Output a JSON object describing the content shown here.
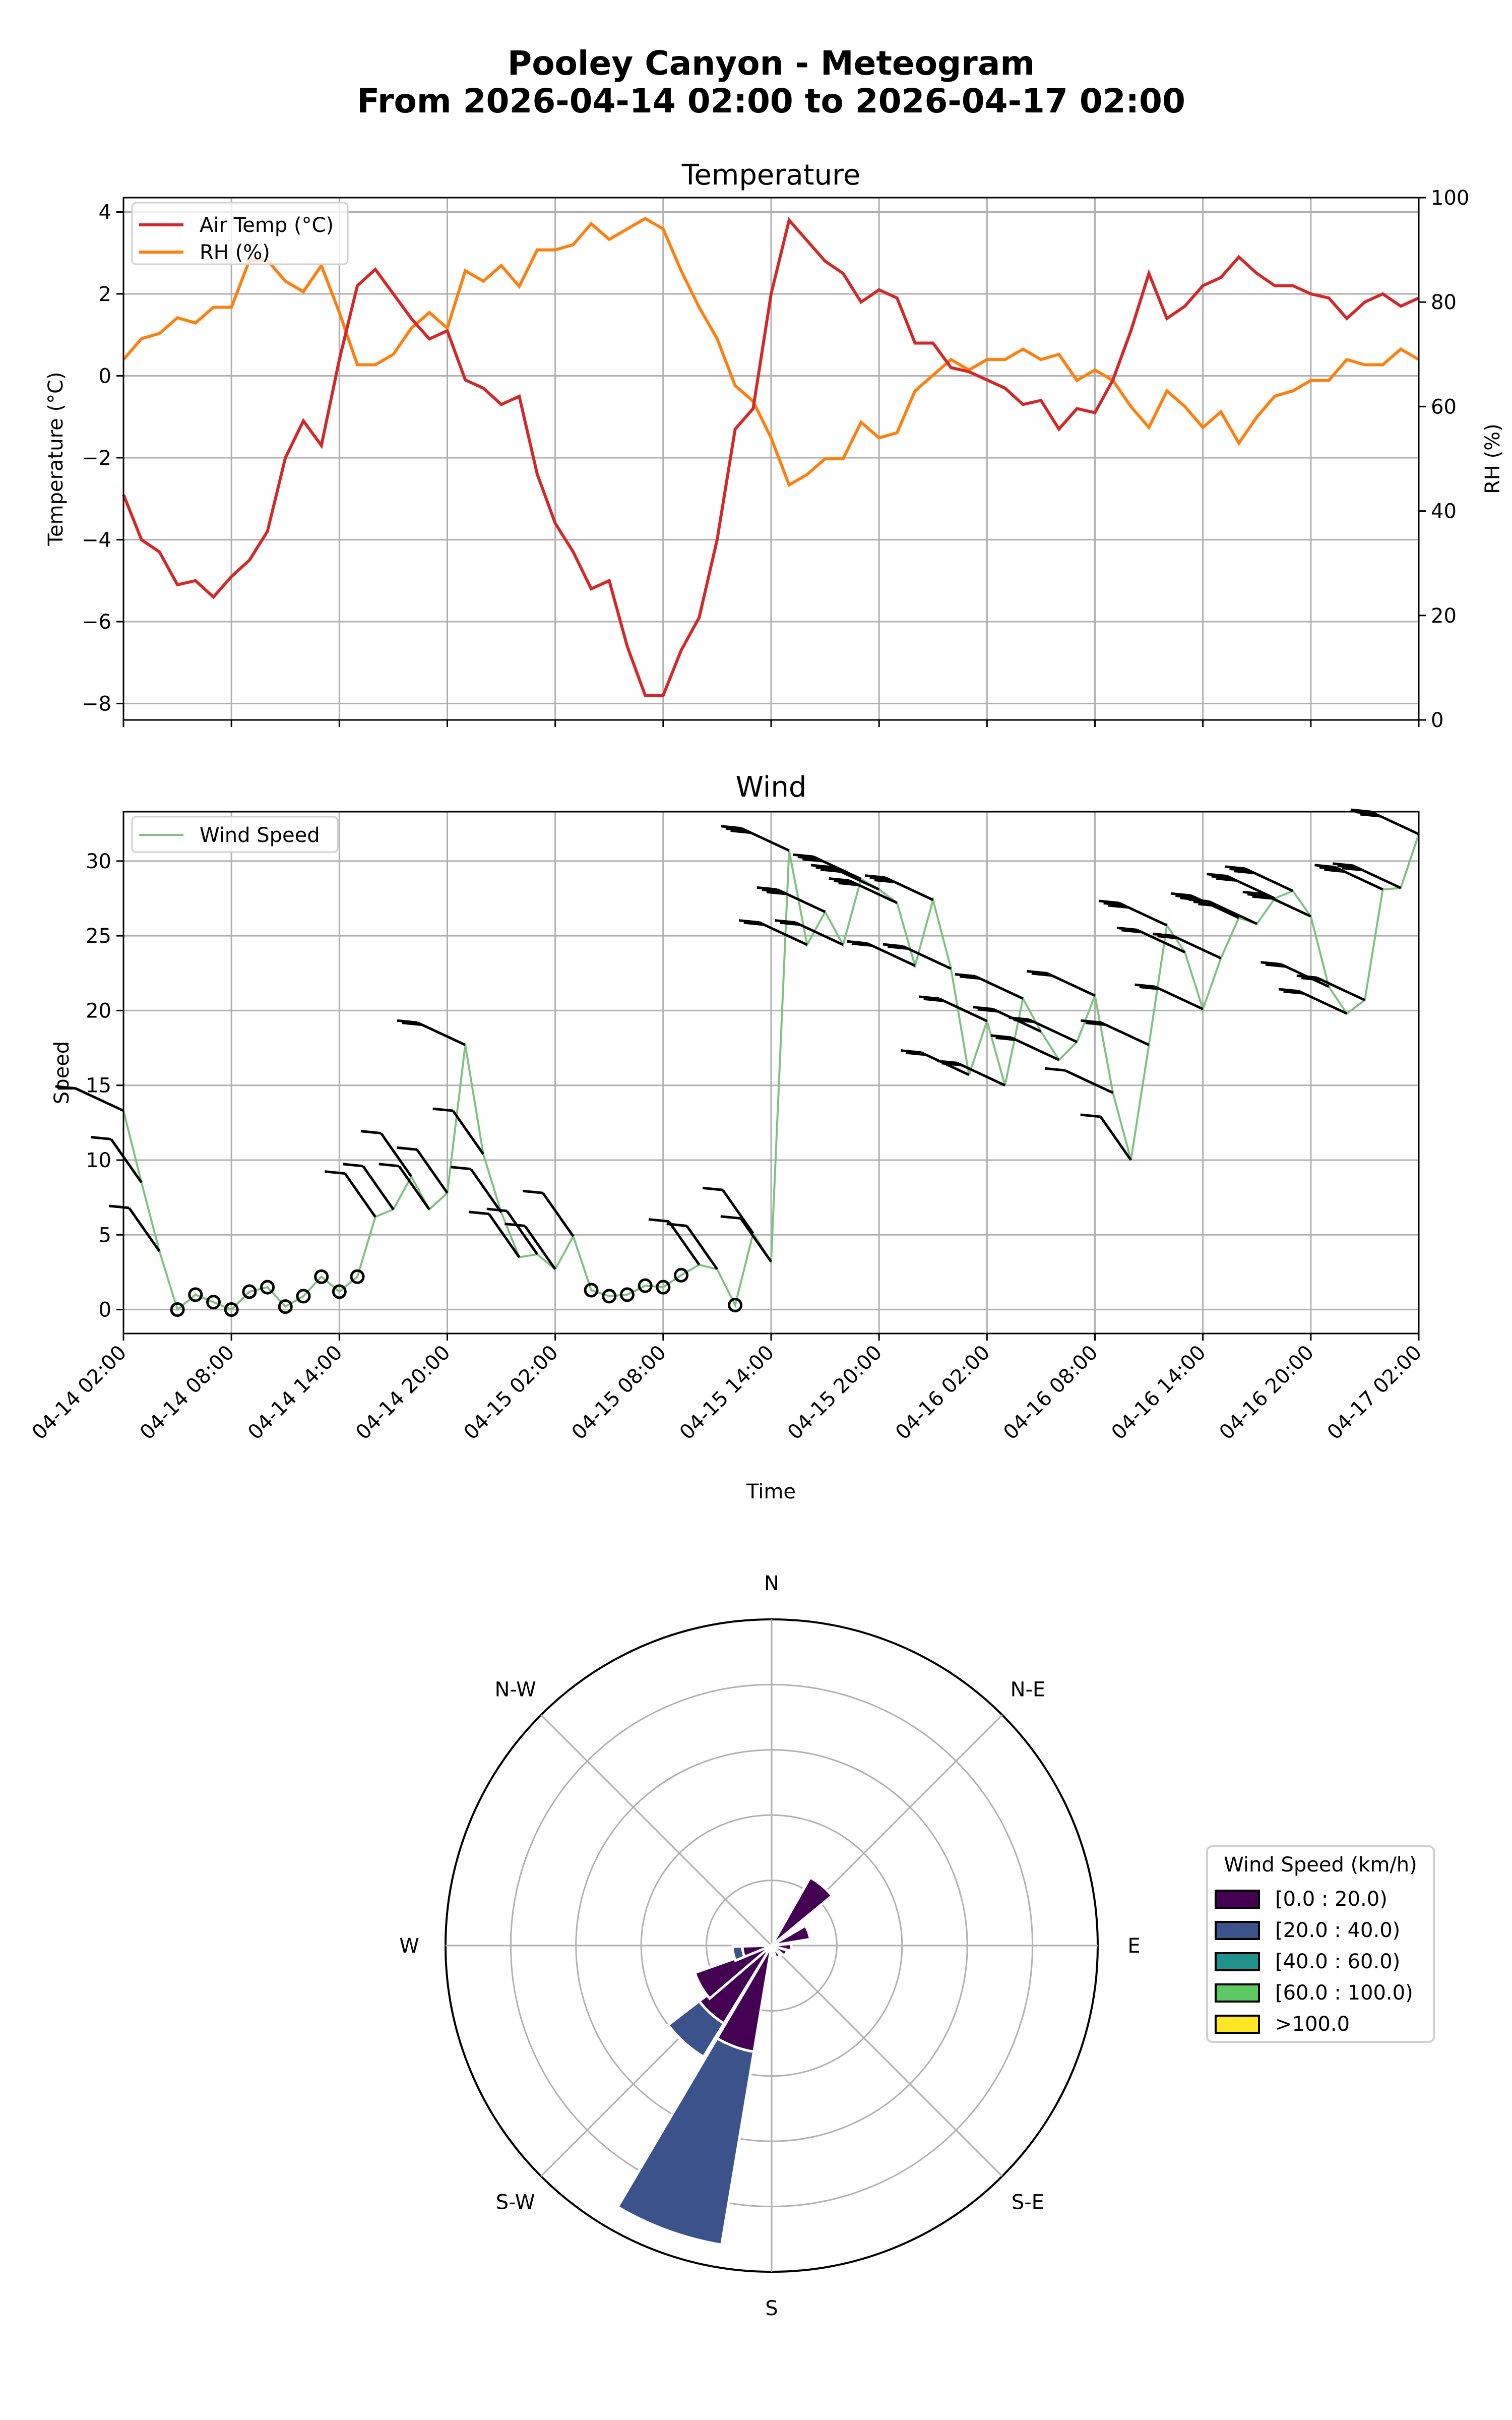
{
  "figure": {
    "title_line1": "Pooley Canyon - Meteogram",
    "title_line2": "From 2026-04-14 02:00 to 2026-04-17 02:00"
  },
  "colors": {
    "air_temp": "#d62728",
    "rh": "#ff7f0e",
    "wind_speed": "#7fc17f",
    "grid": "#b0b0b0",
    "barb": "#000000",
    "bin_0_20": "#440154",
    "bin_20_40": "#3b528b",
    "bin_40_60": "#21918c",
    "bin_60_100": "#5ec962",
    "bin_100_plus": "#fde725"
  },
  "x_ticks": [
    "04-14 02:00",
    "04-14 08:00",
    "04-14 14:00",
    "04-14 20:00",
    "04-15 02:00",
    "04-15 08:00",
    "04-15 14:00",
    "04-15 20:00",
    "04-16 02:00",
    "04-16 08:00",
    "04-16 14:00",
    "04-16 20:00",
    "04-17 02:00"
  ],
  "chart_data": [
    {
      "type": "line",
      "title": "Temperature",
      "xlabel": "",
      "ylabel": "Temperature (°C)",
      "ylabel_right": "RH (%)",
      "ylim": [
        -8.4,
        4.35
      ],
      "ylim_right": [
        0,
        100
      ],
      "yticks": [
        -8,
        -6,
        -4,
        -2,
        0,
        2,
        4
      ],
      "yticks_right": [
        0,
        20,
        40,
        60,
        80,
        100
      ],
      "grid": true,
      "legend_position": "upper left",
      "x_unit": "hours since 2026-04-14 02:00 (hourly, 0–72)",
      "series": [
        {
          "name": "Air Temp (°C)",
          "axis": "left",
          "color": "#d62728",
          "values": [
            -2.9,
            -4.0,
            -4.3,
            -5.1,
            -5.0,
            -5.4,
            -4.9,
            -4.5,
            -3.8,
            -2.0,
            -1.1,
            -1.7,
            0.4,
            2.2,
            2.6,
            2.0,
            1.4,
            0.9,
            1.1,
            -0.1,
            -0.3,
            -0.7,
            -0.5,
            -2.4,
            -3.6,
            -4.3,
            -5.2,
            -5.0,
            -6.6,
            -7.8,
            -7.8,
            -6.7,
            -5.9,
            -4.0,
            -1.3,
            -0.8,
            2.0,
            3.8,
            3.3,
            2.8,
            2.5,
            1.8,
            2.1,
            1.9,
            0.8,
            0.8,
            0.2,
            0.1,
            -0.1,
            -0.3,
            -0.7,
            -0.6,
            -1.3,
            -0.8,
            -0.9,
            -0.1,
            1.1,
            2.5,
            1.4,
            1.7,
            2.2,
            2.4,
            2.9,
            2.5,
            2.2,
            2.2,
            2.0,
            1.9,
            1.4,
            1.8,
            2.0,
            1.7,
            1.9
          ]
        },
        {
          "name": "RH (%)",
          "axis": "right",
          "color": "#ff7f0e",
          "values": [
            69,
            73,
            74,
            77,
            76,
            79,
            79,
            88,
            88,
            84,
            82,
            87,
            78,
            68,
            68,
            70,
            75,
            78,
            75,
            86,
            84,
            87,
            83,
            90,
            90,
            91,
            95,
            92,
            94,
            96,
            94,
            86,
            79,
            73,
            64,
            61,
            54,
            45,
            47,
            50,
            50,
            57,
            54,
            55,
            63,
            66,
            69,
            67,
            69,
            69,
            71,
            69,
            70,
            65,
            67,
            65,
            60,
            56,
            63,
            60,
            56,
            59,
            53,
            58,
            62,
            63,
            65,
            65,
            69,
            68,
            68,
            71,
            69
          ]
        }
      ]
    },
    {
      "type": "line",
      "title": "Wind",
      "xlabel": "Time",
      "ylabel": "Speed",
      "ylim": [
        -1.6,
        33.3
      ],
      "yticks": [
        0,
        5,
        10,
        15,
        20,
        25,
        30
      ],
      "grid": true,
      "legend_position": "upper left",
      "x_unit": "hours since 2026-04-14 02:00 (hourly, 0–72)",
      "series": [
        {
          "name": "Wind Speed",
          "color": "#7fc17f",
          "values": [
            13.3,
            8.5,
            3.9,
            0.0,
            1.0,
            0.5,
            0.0,
            1.2,
            1.5,
            0.2,
            0.9,
            2.2,
            1.2,
            2.2,
            6.2,
            6.7,
            8.9,
            6.7,
            7.8,
            17.7,
            10.4,
            6.5,
            3.5,
            3.7,
            2.7,
            4.9,
            1.3,
            0.9,
            1.0,
            1.6,
            1.5,
            2.3,
            3.0,
            2.7,
            0.3,
            5.1,
            3.2,
            30.7,
            24.4,
            26.6,
            24.4,
            28.8,
            28.1,
            27.2,
            23.0,
            27.4,
            22.8,
            15.7,
            19.3,
            15.0,
            20.8,
            18.6,
            16.7,
            17.9,
            21.0,
            14.5,
            10.0,
            17.7,
            25.7,
            23.9,
            20.1,
            23.5,
            26.2,
            25.8,
            27.5,
            28.0,
            26.3,
            21.6,
            19.8,
            20.7,
            28.1,
            28.2,
            31.8
          ]
        }
      ],
      "annotations": "wind barbs at each hourly point (calm circles where speed < ~2.5)"
    },
    {
      "type": "windrose",
      "title": "",
      "direction_labels": [
        "N",
        "N-E",
        "E",
        "S-E",
        "S",
        "S-W",
        "W",
        "N-W"
      ],
      "legend_title": "Wind Speed (km/h)",
      "legend_position": "right",
      "bins": [
        "[0.0 : 20.0)",
        "[20.0 : 40.0)",
        "[40.0 : 60.0)",
        "[60.0 : 100.0)",
        ">100.0"
      ],
      "rings": 5,
      "sectors": [
        {
          "direction_deg": 40,
          "stack": [
            0.24,
            0.0
          ]
        },
        {
          "direction_deg": 70,
          "stack": [
            0.12,
            0.0
          ]
        },
        {
          "direction_deg": 95,
          "stack": [
            0.06,
            0.0
          ]
        },
        {
          "direction_deg": 118,
          "stack": [
            0.05,
            0.0
          ]
        },
        {
          "direction_deg": 150,
          "stack": [
            0.04,
            0.0
          ]
        },
        {
          "direction_deg": 172,
          "stack": [
            0.03,
            0.0
          ]
        },
        {
          "direction_deg": 200,
          "stack": [
            0.33,
            0.6
          ]
        },
        {
          "direction_deg": 222,
          "stack": [
            0.28,
            0.12
          ]
        },
        {
          "direction_deg": 240,
          "stack": [
            0.25,
            0.0
          ]
        },
        {
          "direction_deg": 258,
          "stack": [
            0.09,
            0.03
          ]
        }
      ]
    }
  ],
  "wind_rose_legend": {
    "title": "Wind Speed (km/h)",
    "items": [
      {
        "label": "[0.0 : 20.0)",
        "color": "#440154"
      },
      {
        "label": "[20.0 : 40.0)",
        "color": "#3b528b"
      },
      {
        "label": "[40.0 : 60.0)",
        "color": "#21918c"
      },
      {
        "label": "[60.0 : 100.0)",
        "color": "#5ec962"
      },
      {
        "label": ">100.0",
        "color": "#fde725"
      }
    ]
  }
}
